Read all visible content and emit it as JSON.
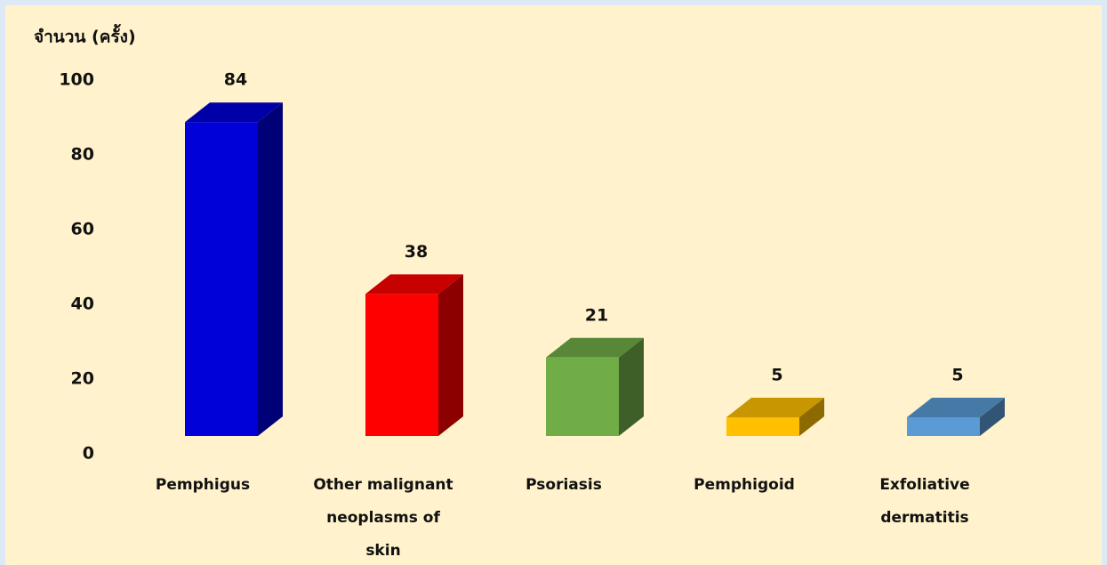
{
  "chart_data": {
    "type": "bar3d",
    "y_label": "จำนวน (ครั้ง)",
    "categories": [
      "Pemphigus",
      "Other malignant neoplasms of skin",
      "Psoriasis",
      "Pemphigoid",
      "Exfoliative dermatitis"
    ],
    "values": [
      84,
      38,
      21,
      5,
      5
    ],
    "colors": [
      "#0000d8",
      "#ff0000",
      "#70ad47",
      "#ffc000",
      "#5b9bd5"
    ],
    "ylim": [
      0,
      100
    ],
    "yticks": [
      0,
      20,
      40,
      60,
      80,
      100
    ]
  }
}
